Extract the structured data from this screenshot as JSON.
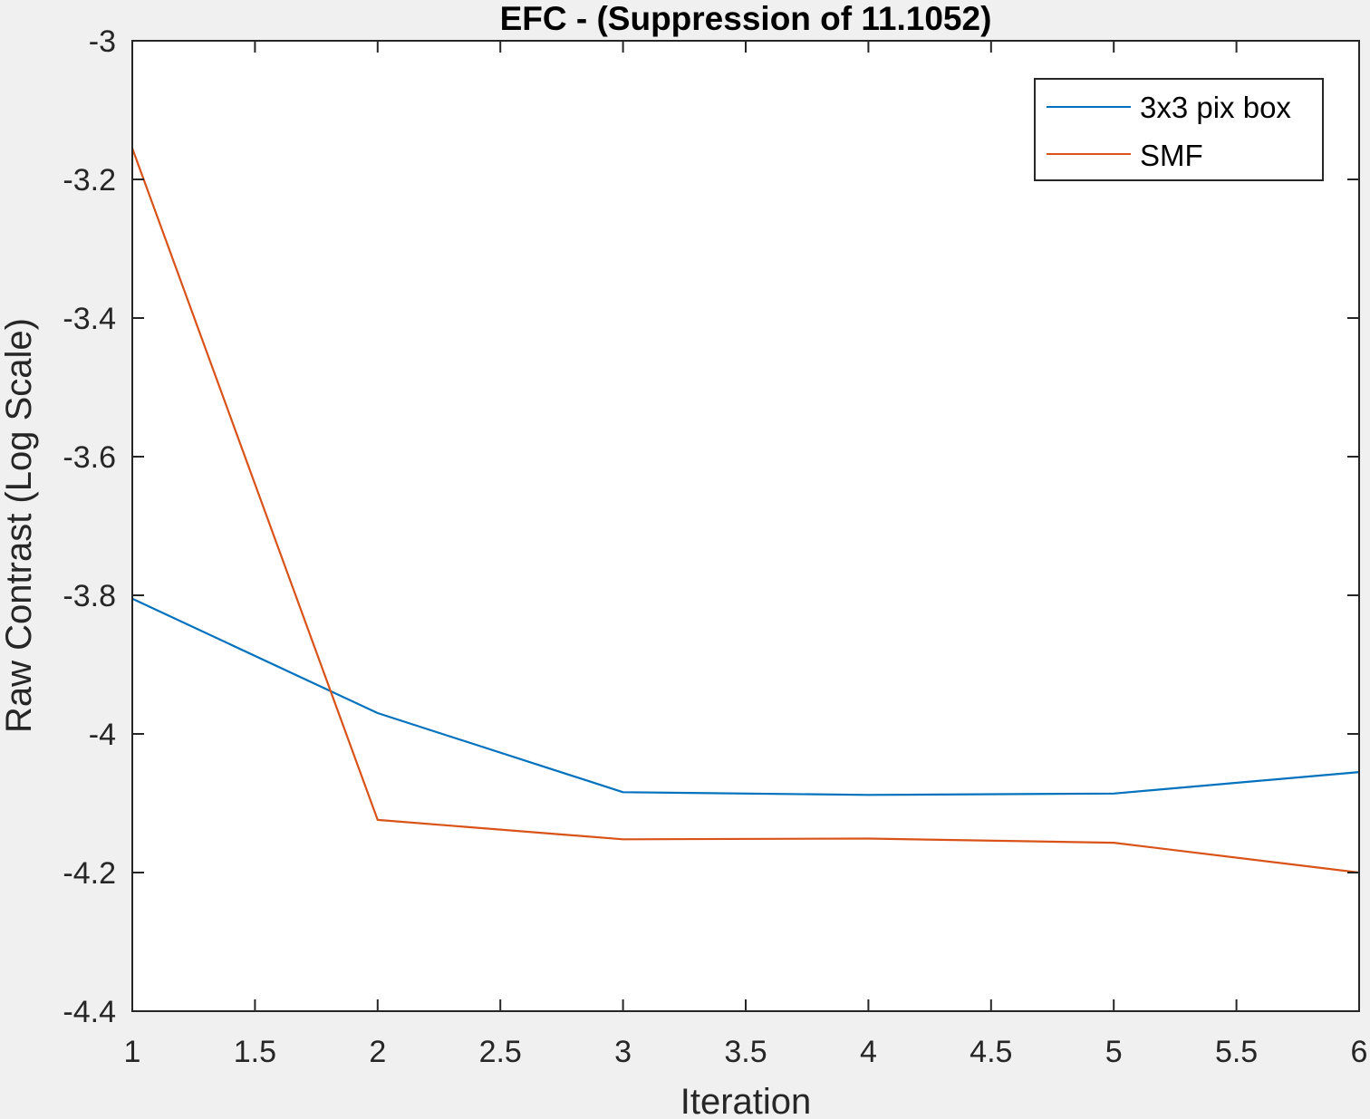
{
  "chart_data": {
    "type": "line",
    "title": "EFC -  (Suppression of 11.1052)",
    "xlabel": "Iteration",
    "ylabel": "Raw Contrast (Log Scale)",
    "xlim": [
      1,
      6
    ],
    "ylim": [
      -4.4,
      -3
    ],
    "xticks": [
      1,
      1.5,
      2,
      2.5,
      3,
      3.5,
      4,
      4.5,
      5,
      5.5,
      6
    ],
    "xtick_labels": [
      "1",
      "1.5",
      "2",
      "2.5",
      "3",
      "3.5",
      "4",
      "4.5",
      "5",
      "5.5",
      "6"
    ],
    "yticks": [
      -3,
      -3.2,
      -3.4,
      -3.6,
      -3.8,
      -4,
      -4.2,
      -4.4
    ],
    "ytick_labels": [
      "-3",
      "-3.2",
      "-3.4",
      "-3.6",
      "-3.8",
      "-4",
      "-4.2",
      "-4.4"
    ],
    "grid": false,
    "legend_position": "top-right",
    "x": [
      1,
      2,
      3,
      4,
      5,
      6
    ],
    "series": [
      {
        "name": "3x3 pix box",
        "color": "#0072bd",
        "values": [
          -3.805,
          -3.97,
          -4.084,
          -4.088,
          -4.086,
          -4.055
        ]
      },
      {
        "name": "SMF",
        "color": "#d95319",
        "values": [
          -3.155,
          -4.124,
          -4.152,
          -4.151,
          -4.157,
          -4.2
        ]
      }
    ]
  }
}
